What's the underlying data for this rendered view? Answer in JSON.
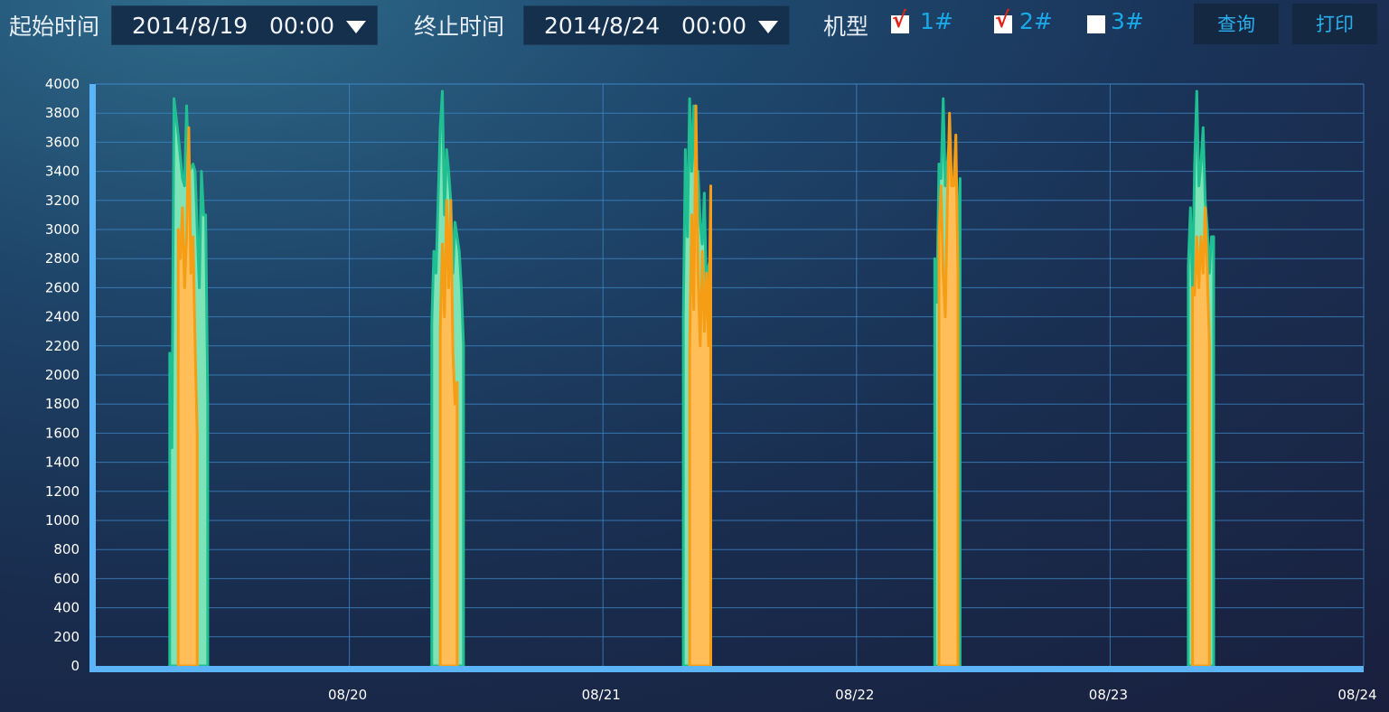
{
  "toolbar": {
    "start_label": "起始时间",
    "start_value": "2014/8/19   00:00",
    "end_label": "终止时间",
    "end_value": "2014/8/24   00:00",
    "model_label": "机型",
    "models": [
      {
        "label": "1#",
        "checked": true
      },
      {
        "label": "2#",
        "checked": true
      },
      {
        "label": "3#",
        "checked": false
      }
    ],
    "query_label": "查询",
    "print_label": "打印"
  },
  "colors": {
    "series1_fill": "#7ee3b6",
    "series1_line": "#1fbf92",
    "series2_fill": "#ffbe57",
    "series2_line": "#f59d14",
    "grid": "#3d86c6",
    "axis": "#5ab4f7"
  },
  "chart_data": {
    "type": "area",
    "xlabel": "",
    "ylabel": "",
    "ylim": [
      0,
      4000
    ],
    "yticks": [
      "0",
      "200",
      "400",
      "600",
      "800",
      "1000",
      "1200",
      "1400",
      "1600",
      "1800",
      "2000",
      "2200",
      "2400",
      "2600",
      "2800",
      "3000",
      "3200",
      "3400",
      "3600",
      "3800",
      "4000"
    ],
    "xticks": [
      "08/20",
      "08/21",
      "08/22",
      "08/23",
      "08/24"
    ],
    "xlim": [
      "2014-08-19 00:00",
      "2014-08-24 00:00"
    ],
    "grid": true,
    "series": [
      {
        "checked_model": "1#",
        "days": [
          {
            "day": "2014-08-19",
            "points": [
              [
                "07:00",
                0
              ],
              [
                "07:00",
                2150
              ],
              [
                "07:12",
                1500
              ],
              [
                "07:24",
                3900
              ],
              [
                "07:48",
                3650
              ],
              [
                "08:12",
                3350
              ],
              [
                "08:24",
                3300
              ],
              [
                "08:36",
                3850
              ],
              [
                "08:48",
                3400
              ],
              [
                "09:12",
                3450
              ],
              [
                "09:24",
                3400
              ],
              [
                "09:48",
                2600
              ],
              [
                "10:00",
                3400
              ],
              [
                "10:12",
                3100
              ],
              [
                "10:24",
                3100
              ],
              [
                "10:36",
                1800
              ],
              [
                "10:36",
                0
              ]
            ]
          },
          {
            "day": "2014-08-20",
            "points": [
              [
                "07:48",
                0
              ],
              [
                "07:48",
                2350
              ],
              [
                "08:00",
                2850
              ],
              [
                "08:12",
                2700
              ],
              [
                "08:24",
                3200
              ],
              [
                "08:36",
                3700
              ],
              [
                "08:48",
                3950
              ],
              [
                "09:00",
                3100
              ],
              [
                "09:12",
                3550
              ],
              [
                "09:24",
                3400
              ],
              [
                "09:36",
                3200
              ],
              [
                "09:48",
                2700
              ],
              [
                "10:00",
                3050
              ],
              [
                "10:24",
                2850
              ],
              [
                "10:36",
                2600
              ],
              [
                "10:48",
                2200
              ],
              [
                "10:48",
                0
              ]
            ]
          },
          {
            "day": "2014-08-21",
            "points": [
              [
                "07:36",
                0
              ],
              [
                "07:36",
                2400
              ],
              [
                "07:48",
                3550
              ],
              [
                "08:00",
                2950
              ],
              [
                "08:12",
                3900
              ],
              [
                "08:24",
                3400
              ],
              [
                "08:36",
                3850
              ],
              [
                "08:48",
                3200
              ],
              [
                "09:00",
                3400
              ],
              [
                "09:12",
                3050
              ],
              [
                "09:24",
                2900
              ],
              [
                "09:36",
                3250
              ],
              [
                "09:48",
                2500
              ],
              [
                "10:00",
                2750
              ],
              [
                "10:12",
                2800
              ],
              [
                "10:12",
                0
              ]
            ]
          },
          {
            "day": "2014-08-22",
            "points": [
              [
                "07:24",
                0
              ],
              [
                "07:24",
                2800
              ],
              [
                "07:36",
                2500
              ],
              [
                "07:48",
                3450
              ],
              [
                "08:00",
                3350
              ],
              [
                "08:12",
                3900
              ],
              [
                "08:24",
                3300
              ],
              [
                "08:36",
                3450
              ],
              [
                "08:48",
                3650
              ],
              [
                "09:00",
                3300
              ],
              [
                "09:12",
                3300
              ],
              [
                "09:24",
                2700
              ],
              [
                "09:36",
                2950
              ],
              [
                "09:48",
                3350
              ],
              [
                "09:48",
                0
              ]
            ]
          },
          {
            "day": "2014-08-23",
            "points": [
              [
                "07:24",
                0
              ],
              [
                "07:24",
                2750
              ],
              [
                "07:36",
                3150
              ],
              [
                "07:48",
                2600
              ],
              [
                "08:00",
                3450
              ],
              [
                "08:12",
                3950
              ],
              [
                "08:24",
                3300
              ],
              [
                "08:36",
                3450
              ],
              [
                "08:48",
                3700
              ],
              [
                "09:00",
                3200
              ],
              [
                "09:12",
                3000
              ],
              [
                "09:24",
                2700
              ],
              [
                "09:36",
                2950
              ],
              [
                "09:48",
                2950
              ],
              [
                "09:48",
                0
              ]
            ]
          }
        ]
      },
      {
        "checked_model": "2#",
        "days": [
          {
            "day": "2014-08-19",
            "points": [
              [
                "07:48",
                0
              ],
              [
                "07:48",
                3000
              ],
              [
                "08:00",
                2800
              ],
              [
                "08:12",
                3150
              ],
              [
                "08:24",
                2600
              ],
              [
                "08:36",
                2950
              ],
              [
                "08:48",
                3700
              ],
              [
                "09:00",
                2700
              ],
              [
                "09:12",
                2950
              ],
              [
                "09:24",
                2200
              ],
              [
                "09:36",
                1600
              ],
              [
                "09:36",
                0
              ]
            ]
          },
          {
            "day": "2014-08-20",
            "points": [
              [
                "08:36",
                0
              ],
              [
                "08:36",
                2300
              ],
              [
                "08:48",
                2900
              ],
              [
                "09:00",
                2400
              ],
              [
                "09:12",
                3200
              ],
              [
                "09:24",
                2600
              ],
              [
                "09:36",
                3200
              ],
              [
                "09:48",
                2150
              ],
              [
                "10:00",
                1800
              ],
              [
                "10:12",
                1950
              ],
              [
                "10:12",
                0
              ]
            ]
          },
          {
            "day": "2014-08-21",
            "points": [
              [
                "08:12",
                0
              ],
              [
                "08:12",
                2150
              ],
              [
                "08:24",
                3100
              ],
              [
                "08:36",
                2450
              ],
              [
                "08:48",
                3850
              ],
              [
                "09:00",
                2700
              ],
              [
                "09:12",
                2200
              ],
              [
                "09:24",
                2850
              ],
              [
                "09:36",
                2300
              ],
              [
                "09:48",
                2700
              ],
              [
                "10:00",
                2200
              ],
              [
                "10:12",
                3300
              ],
              [
                "10:12",
                0
              ]
            ]
          },
          {
            "day": "2014-08-22",
            "points": [
              [
                "07:48",
                0
              ],
              [
                "07:48",
                2950
              ],
              [
                "08:00",
                3300
              ],
              [
                "08:12",
                2700
              ],
              [
                "08:24",
                2400
              ],
              [
                "08:36",
                3200
              ],
              [
                "08:48",
                3800
              ],
              [
                "09:00",
                3300
              ],
              [
                "09:12",
                3300
              ],
              [
                "09:24",
                3650
              ],
              [
                "09:36",
                2700
              ],
              [
                "09:36",
                0
              ]
            ]
          },
          {
            "day": "2014-08-23",
            "points": [
              [
                "07:48",
                0
              ],
              [
                "07:48",
                2600
              ],
              [
                "08:00",
                2550
              ],
              [
                "08:12",
                2950
              ],
              [
                "08:24",
                2600
              ],
              [
                "08:36",
                2950
              ],
              [
                "08:48",
                2700
              ],
              [
                "09:00",
                3150
              ],
              [
                "09:12",
                2700
              ],
              [
                "09:24",
                2200
              ],
              [
                "09:24",
                0
              ]
            ]
          }
        ]
      }
    ]
  }
}
